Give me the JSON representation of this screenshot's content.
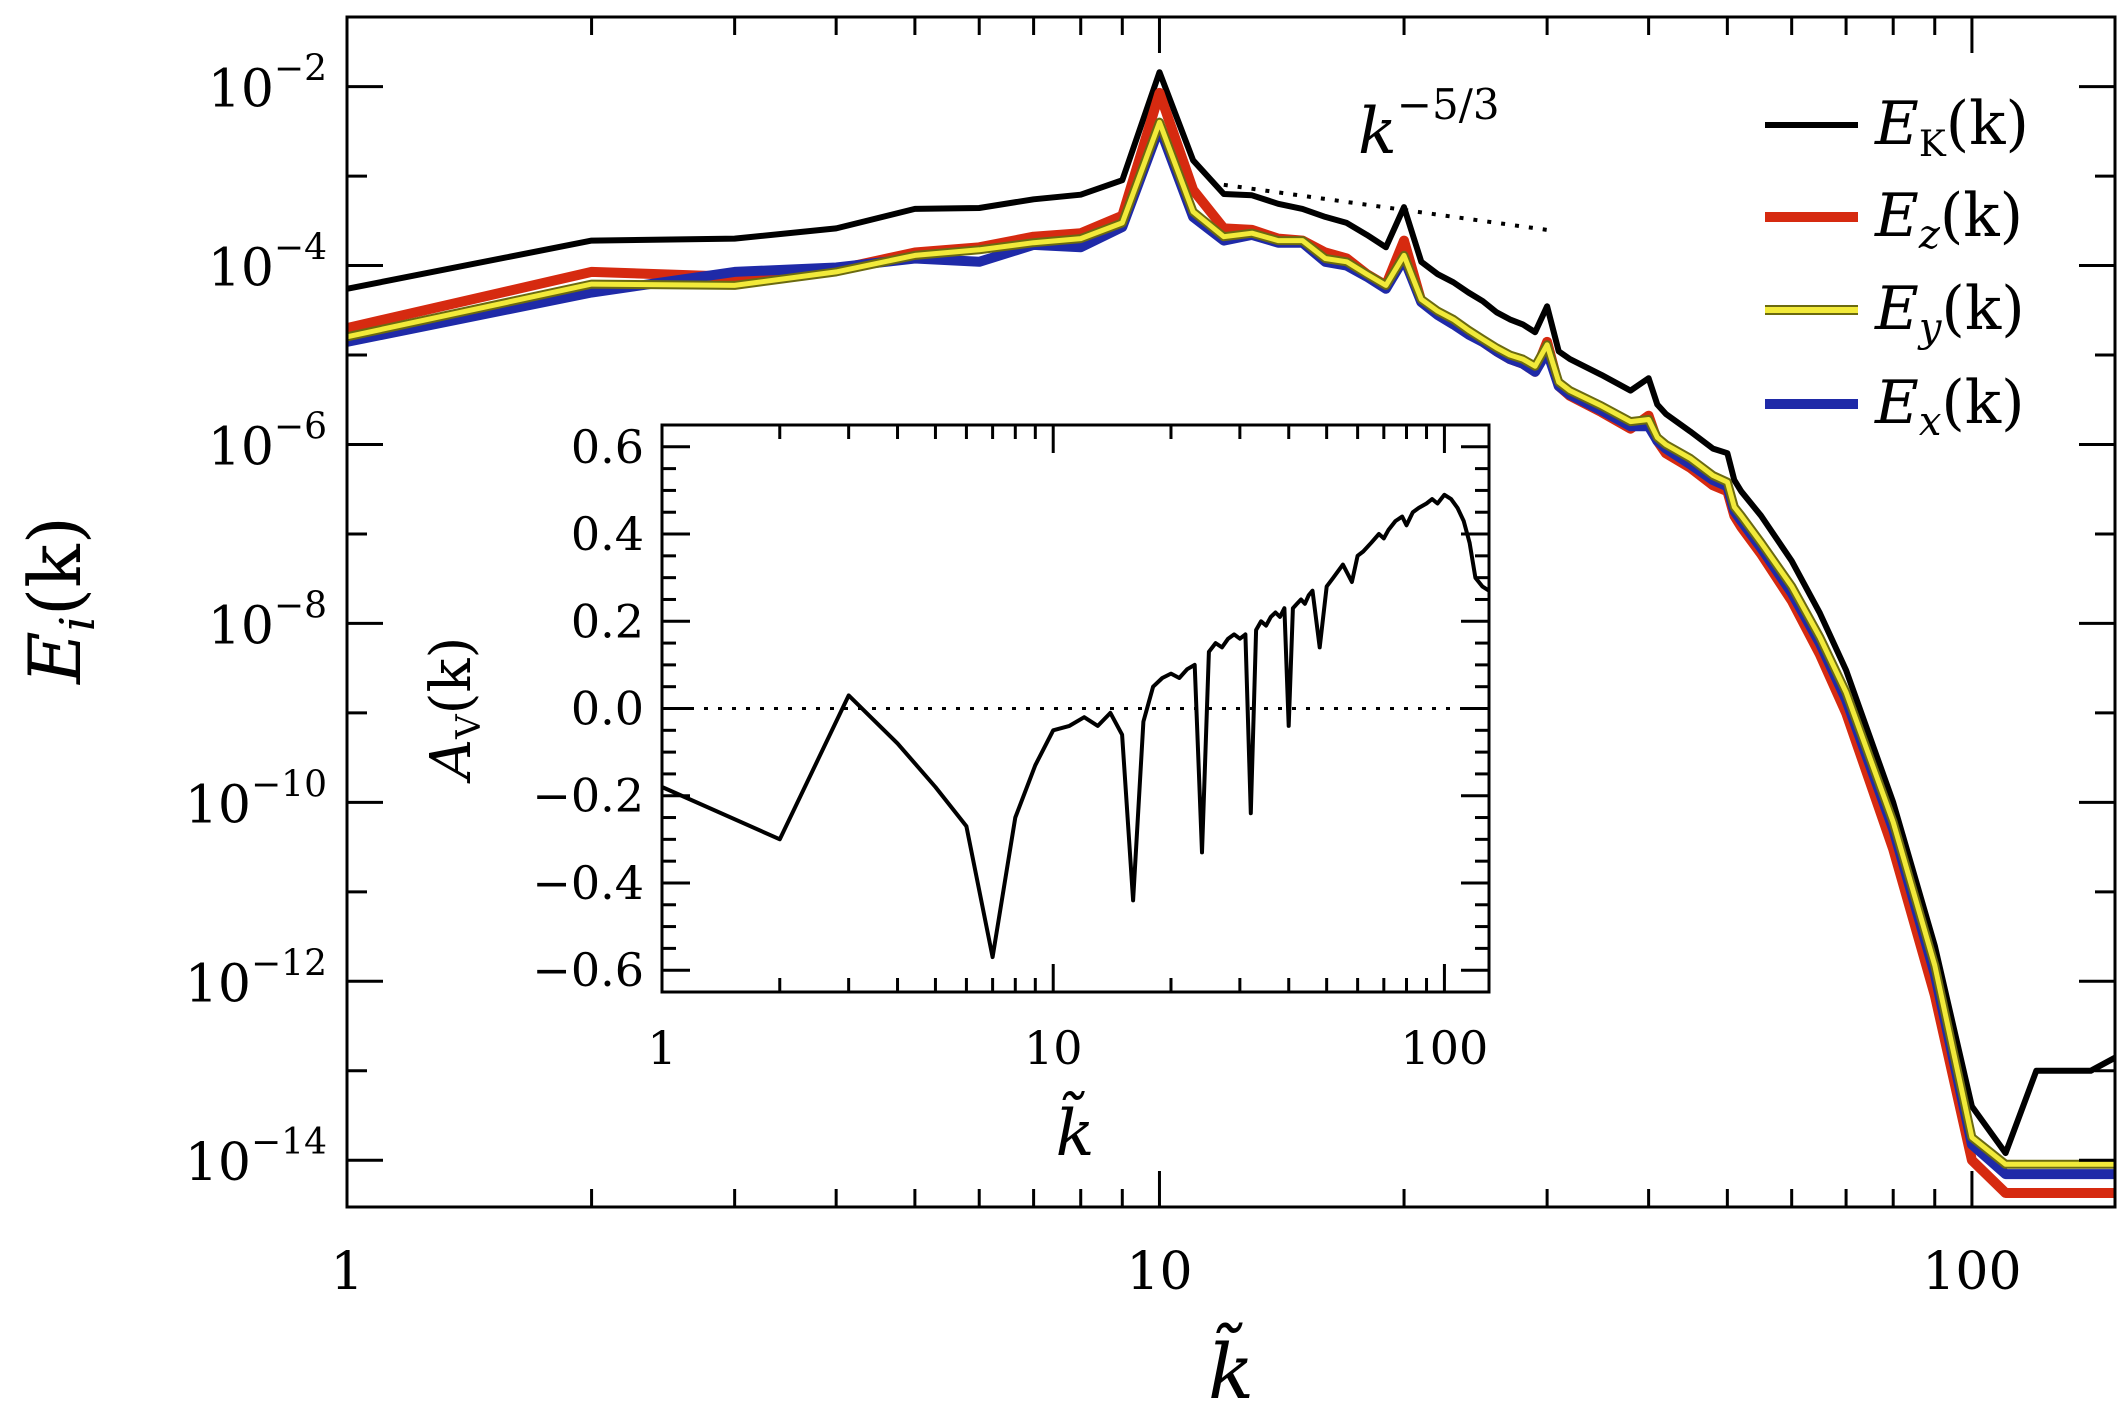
{
  "chart_data": [
    {
      "type": "line",
      "scale": "log-log",
      "title": "",
      "xlabel": "k̃",
      "ylabel": {
        "base": "E",
        "sub": "i",
        "arg": "(k)"
      },
      "xlim": [
        1,
        150
      ],
      "ylim": [
        3e-15,
        0.06
      ],
      "x_ticks": [
        {
          "value": 1,
          "label": "1"
        },
        {
          "value": 10,
          "label": "10"
        },
        {
          "value": 100,
          "label": "100"
        }
      ],
      "y_ticks": [
        {
          "value": 0.01,
          "base": "10",
          "exp": "−2"
        },
        {
          "value": 0.0001,
          "base": "10",
          "exp": "−4"
        },
        {
          "value": 1e-06,
          "base": "10",
          "exp": "−6"
        },
        {
          "value": 1e-08,
          "base": "10",
          "exp": "−8"
        },
        {
          "value": 1e-10,
          "base": "10",
          "exp": "−10"
        },
        {
          "value": 1e-12,
          "base": "10",
          "exp": "−12"
        },
        {
          "value": 1e-14,
          "base": "10",
          "exp": "−14"
        }
      ],
      "legend_position": "top-right",
      "legend": [
        {
          "base": "E",
          "sub": "K",
          "arg": "(k)",
          "color": "#000000"
        },
        {
          "base": "E",
          "sub": "z",
          "arg": "(k)",
          "color": "#d62a10"
        },
        {
          "base": "E",
          "sub": "y",
          "arg": "(k)",
          "color": "#f2ea3a"
        },
        {
          "base": "E",
          "sub": "x",
          "arg": "(k)",
          "color": "#1f2aa8"
        }
      ],
      "annotation": {
        "base": "k",
        "exp": "−5/3",
        "line_x": [
          12,
          30
        ],
        "line_y": [
          0.0008,
          0.00025
        ]
      },
      "series": [
        {
          "name": "E_K(k)",
          "color": "#000000",
          "width": 6,
          "x": [
            1,
            2,
            3,
            4,
            5,
            6,
            7,
            8,
            9,
            10,
            11,
            12,
            13,
            14,
            15,
            16,
            17,
            18,
            19,
            20,
            21,
            22,
            23,
            24,
            25,
            26,
            27,
            28,
            29,
            30,
            31,
            32,
            35,
            38,
            40,
            41,
            42,
            45,
            48,
            50,
            51,
            52,
            55,
            60,
            65,
            70,
            80,
            90,
            100,
            110,
            120,
            130,
            140,
            150
          ],
          "y": [
            5.5e-05,
            0.00019,
            0.0002,
            0.00026,
            0.00043,
            0.00044,
            0.00055,
            0.00062,
            0.0009,
            0.0145,
            0.0015,
            0.00063,
            0.00061,
            0.00049,
            0.00043,
            0.00035,
            0.0003,
            0.00022,
            0.00016,
            0.00045,
            0.00011,
            8e-05,
            6.5e-05,
            5e-05,
            4e-05,
            3e-05,
            2.5e-05,
            2.2e-05,
            1.8e-05,
            3.5e-05,
            1.1e-05,
            9e-06,
            6e-06,
            4e-06,
            5.5e-06,
            2.8e-06,
            2.2e-06,
            1.4e-06,
            9e-07,
            8e-07,
            4e-07,
            3e-07,
            1.6e-07,
            5e-08,
            1.3e-08,
            3e-09,
            1e-10,
            2.5e-12,
            4e-14,
            1.2e-14,
            1e-13,
            1e-13,
            1e-13,
            1.4e-13
          ]
        },
        {
          "name": "E_z(k)",
          "color": "#d62a10",
          "width": 10,
          "x": [
            1,
            2,
            3,
            4,
            5,
            6,
            7,
            8,
            9,
            10,
            11,
            12,
            13,
            14,
            15,
            16,
            17,
            18,
            19,
            20,
            21,
            22,
            23,
            24,
            25,
            26,
            27,
            28,
            29,
            30,
            31,
            32,
            35,
            38,
            40,
            41,
            42,
            45,
            48,
            50,
            51,
            52,
            55,
            60,
            65,
            70,
            80,
            90,
            100,
            110,
            120,
            130,
            140,
            150
          ],
          "y": [
            2e-05,
            8.5e-05,
            7.5e-05,
            9e-05,
            0.00014,
            0.00016,
            0.00021,
            0.00023,
            0.00036,
            0.0085,
            0.0007,
            0.00026,
            0.00025,
            0.0002,
            0.00019,
            0.00014,
            0.00012,
            8e-05,
            6e-05,
            0.00019,
            4e-05,
            3e-05,
            2.4e-05,
            1.8e-05,
            1.4e-05,
            1.1e-05,
            9e-06,
            8e-06,
            6.5e-06,
            1.4e-05,
            4.5e-06,
            3.5e-06,
            2.3e-06,
            1.5e-06,
            2.1e-06,
            1.1e-06,
            8e-07,
            5.5e-07,
            3.5e-07,
            3e-07,
            1.6e-07,
            1.2e-07,
            6e-08,
            1.8e-08,
            4.5e-09,
            1e-09,
            3e-11,
            7e-13,
            1e-14,
            4.3e-15,
            4.3e-15,
            4.3e-15,
            4.3e-15,
            4.3e-15
          ]
        },
        {
          "name": "E_x(k)",
          "color": "#1f2aa8",
          "width": 10,
          "x": [
            1,
            2,
            3,
            4,
            5,
            6,
            7,
            8,
            9,
            10,
            11,
            12,
            13,
            14,
            15,
            16,
            17,
            18,
            19,
            20,
            21,
            22,
            23,
            24,
            25,
            26,
            27,
            28,
            29,
            30,
            31,
            32,
            35,
            38,
            40,
            41,
            42,
            45,
            48,
            50,
            51,
            52,
            55,
            60,
            65,
            70,
            80,
            90,
            100,
            110,
            120,
            130,
            140,
            150
          ],
          "y": [
            1.4e-05,
            5e-05,
            8.5e-05,
            9.5e-05,
            0.00012,
            0.00011,
            0.00017,
            0.00016,
            0.00027,
            0.0035,
            0.00035,
            0.00019,
            0.00022,
            0.00018,
            0.00018,
            0.00011,
            0.0001,
            7.5e-05,
            5.5e-05,
            0.00012,
            3.9e-05,
            2.8e-05,
            2.2e-05,
            1.7e-05,
            1.4e-05,
            1.1e-05,
            9e-06,
            8e-06,
            6.5e-06,
            1.1e-05,
            4.5e-06,
            3.6e-06,
            2.4e-06,
            1.6e-06,
            1.6e-06,
            1.1e-06,
            9e-07,
            6e-07,
            4e-07,
            3.4e-07,
            1.8e-07,
            1.4e-07,
            7e-08,
            2.2e-08,
            6e-09,
            1.4e-09,
            5e-11,
            1.2e-12,
            1.5e-14,
            7e-15,
            7e-15,
            7e-15,
            7e-15,
            7e-15
          ]
        },
        {
          "name": "E_y(k)",
          "color": "#f2ea3a",
          "width": 5,
          "x": [
            1,
            2,
            3,
            4,
            5,
            6,
            7,
            8,
            9,
            10,
            11,
            12,
            13,
            14,
            15,
            16,
            17,
            18,
            19,
            20,
            21,
            22,
            23,
            24,
            25,
            26,
            27,
            28,
            29,
            30,
            31,
            32,
            35,
            38,
            40,
            41,
            42,
            45,
            48,
            50,
            51,
            52,
            55,
            60,
            65,
            70,
            80,
            90,
            100,
            110,
            120,
            130,
            140,
            150
          ],
          "y": [
            1.6e-05,
            6.2e-05,
            6e-05,
            8.5e-05,
            0.00013,
            0.00015,
            0.00018,
            0.0002,
            0.0003,
            0.004,
            0.0004,
            0.00021,
            0.00023,
            0.00019,
            0.00019,
            0.00012,
            0.00011,
            8e-05,
            6e-05,
            0.00013,
            4.2e-05,
            3.1e-05,
            2.5e-05,
            1.9e-05,
            1.5e-05,
            1.2e-05,
            1e-05,
            9e-06,
            7.5e-06,
            1.3e-05,
            5e-06,
            4e-06,
            2.7e-06,
            1.8e-06,
            1.9e-06,
            1.2e-06,
            1e-06,
            7e-07,
            4.5e-07,
            3.8e-07,
            2e-07,
            1.6e-07,
            8e-08,
            2.6e-08,
            7e-09,
            1.7e-09,
            6e-11,
            1.5e-12,
            1.8e-14,
            9e-15,
            9e-15,
            9e-15,
            9e-15,
            9e-15
          ]
        }
      ]
    },
    {
      "type": "line",
      "scale": "log-x",
      "title": "",
      "xlabel": "k̃",
      "ylabel": {
        "base": "A",
        "sub": "V",
        "arg": "(k)"
      },
      "xlim": [
        1,
        130
      ],
      "ylim": [
        -0.65,
        0.65
      ],
      "x_ticks": [
        {
          "value": 1,
          "label": "1"
        },
        {
          "value": 10,
          "label": "10"
        },
        {
          "value": 100,
          "label": "100"
        }
      ],
      "y_ticks": [
        {
          "value": 0.6,
          "label": "0.6"
        },
        {
          "value": 0.4,
          "label": "0.4"
        },
        {
          "value": 0.2,
          "label": "0.2"
        },
        {
          "value": 0.0,
          "label": "0.0"
        },
        {
          "value": -0.2,
          "label": "−0.2"
        },
        {
          "value": -0.4,
          "label": "−0.4"
        },
        {
          "value": -0.6,
          "label": "−0.6"
        }
      ],
      "reference_line": {
        "y": 0.0,
        "style": "dotted"
      },
      "series": [
        {
          "name": "A_V(k)",
          "color": "#000000",
          "width": 4,
          "x": [
            1,
            2,
            3,
            4,
            5,
            6,
            7,
            8,
            9,
            10,
            11,
            12,
            13,
            14,
            15,
            16,
            17,
            18,
            19,
            20,
            21,
            22,
            23,
            24,
            25,
            26,
            27,
            28,
            29,
            30,
            31,
            32,
            33,
            34,
            35,
            36,
            37,
            38,
            39,
            40,
            41,
            42,
            43,
            44,
            45,
            46,
            48,
            50,
            52,
            55,
            58,
            60,
            62,
            65,
            68,
            70,
            72,
            75,
            78,
            80,
            83,
            86,
            90,
            93,
            96,
            100,
            104,
            108,
            112,
            116,
            120,
            125,
            130
          ],
          "y": [
            -0.18,
            -0.3,
            0.03,
            -0.08,
            -0.18,
            -0.27,
            -0.57,
            -0.25,
            -0.13,
            -0.05,
            -0.04,
            -0.02,
            -0.04,
            -0.01,
            -0.06,
            -0.44,
            -0.03,
            0.05,
            0.07,
            0.08,
            0.07,
            0.09,
            0.1,
            -0.33,
            0.13,
            0.15,
            0.14,
            0.16,
            0.17,
            0.16,
            0.17,
            -0.24,
            0.18,
            0.2,
            0.19,
            0.21,
            0.22,
            0.21,
            0.23,
            -0.04,
            0.23,
            0.24,
            0.25,
            0.24,
            0.26,
            0.27,
            0.14,
            0.28,
            0.3,
            0.33,
            0.29,
            0.35,
            0.36,
            0.38,
            0.4,
            0.39,
            0.41,
            0.43,
            0.44,
            0.42,
            0.45,
            0.46,
            0.47,
            0.48,
            0.47,
            0.49,
            0.48,
            0.46,
            0.43,
            0.38,
            0.3,
            0.28,
            0.27
          ]
        }
      ]
    }
  ]
}
